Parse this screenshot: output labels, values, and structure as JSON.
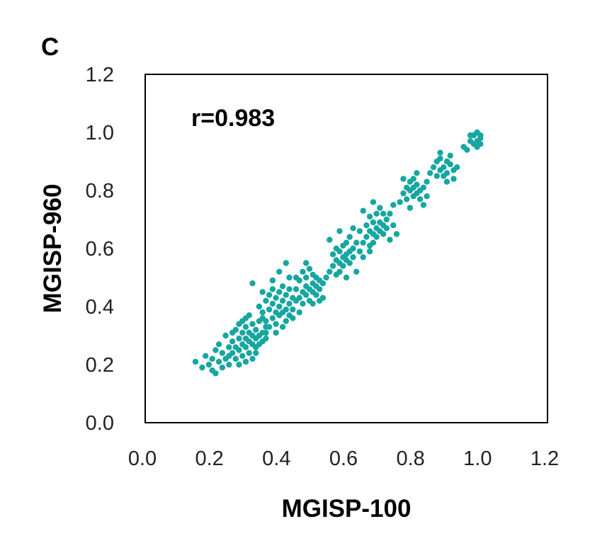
{
  "chart_data": {
    "type": "scatter",
    "panel_label": "C",
    "annotation": "r=0.983",
    "xlabel": "MGISP-100",
    "ylabel": "MGISP-960",
    "xlim": [
      0.0,
      1.2
    ],
    "ylim": [
      0.0,
      1.2
    ],
    "xticks": [
      "0.0",
      "0.2",
      "0.4",
      "0.6",
      "0.8",
      "1.0",
      "1.2"
    ],
    "yticks": [
      "0.0",
      "0.2",
      "0.4",
      "0.6",
      "0.8",
      "1.0",
      "1.2"
    ],
    "marker_color": "#17a6a0",
    "grid": false,
    "points": [
      [
        0.15,
        0.21
      ],
      [
        0.17,
        0.19
      ],
      [
        0.18,
        0.23
      ],
      [
        0.19,
        0.2
      ],
      [
        0.2,
        0.18
      ],
      [
        0.2,
        0.22
      ],
      [
        0.21,
        0.25
      ],
      [
        0.21,
        0.17
      ],
      [
        0.22,
        0.21
      ],
      [
        0.22,
        0.27
      ],
      [
        0.23,
        0.19
      ],
      [
        0.23,
        0.24
      ],
      [
        0.24,
        0.3
      ],
      [
        0.24,
        0.22
      ],
      [
        0.25,
        0.26
      ],
      [
        0.25,
        0.2
      ],
      [
        0.26,
        0.28
      ],
      [
        0.26,
        0.24
      ],
      [
        0.27,
        0.32
      ],
      [
        0.27,
        0.26
      ],
      [
        0.27,
        0.22
      ],
      [
        0.28,
        0.29
      ],
      [
        0.28,
        0.25
      ],
      [
        0.28,
        0.34
      ],
      [
        0.29,
        0.27
      ],
      [
        0.29,
        0.31
      ],
      [
        0.29,
        0.23
      ],
      [
        0.3,
        0.29
      ],
      [
        0.3,
        0.26
      ],
      [
        0.3,
        0.33
      ],
      [
        0.3,
        0.36
      ],
      [
        0.31,
        0.28
      ],
      [
        0.31,
        0.24
      ],
      [
        0.31,
        0.31
      ],
      [
        0.32,
        0.27
      ],
      [
        0.32,
        0.3
      ],
      [
        0.32,
        0.34
      ],
      [
        0.33,
        0.26
      ],
      [
        0.33,
        0.29
      ],
      [
        0.33,
        0.32
      ],
      [
        0.34,
        0.3
      ],
      [
        0.34,
        0.27
      ],
      [
        0.34,
        0.35
      ],
      [
        0.35,
        0.31
      ],
      [
        0.35,
        0.28
      ],
      [
        0.36,
        0.33
      ],
      [
        0.26,
        0.31
      ],
      [
        0.29,
        0.35
      ],
      [
        0.31,
        0.37
      ],
      [
        0.25,
        0.23
      ],
      [
        0.3,
        0.21
      ],
      [
        0.32,
        0.22
      ],
      [
        0.28,
        0.2
      ],
      [
        0.33,
        0.24
      ],
      [
        0.36,
        0.29
      ],
      [
        0.35,
        0.36
      ],
      [
        0.32,
        0.48
      ],
      [
        0.34,
        0.4
      ],
      [
        0.35,
        0.38
      ],
      [
        0.36,
        0.42
      ],
      [
        0.36,
        0.35
      ],
      [
        0.37,
        0.39
      ],
      [
        0.37,
        0.44
      ],
      [
        0.37,
        0.33
      ],
      [
        0.38,
        0.41
      ],
      [
        0.38,
        0.36
      ],
      [
        0.38,
        0.46
      ],
      [
        0.39,
        0.38
      ],
      [
        0.39,
        0.43
      ],
      [
        0.39,
        0.34
      ],
      [
        0.4,
        0.4
      ],
      [
        0.4,
        0.37
      ],
      [
        0.4,
        0.45
      ],
      [
        0.41,
        0.42
      ],
      [
        0.41,
        0.38
      ],
      [
        0.41,
        0.47
      ],
      [
        0.42,
        0.39
      ],
      [
        0.42,
        0.44
      ],
      [
        0.42,
        0.35
      ],
      [
        0.43,
        0.41
      ],
      [
        0.43,
        0.37
      ],
      [
        0.43,
        0.46
      ],
      [
        0.44,
        0.43
      ],
      [
        0.44,
        0.39
      ],
      [
        0.45,
        0.42
      ],
      [
        0.45,
        0.5
      ],
      [
        0.46,
        0.38
      ],
      [
        0.36,
        0.31
      ],
      [
        0.39,
        0.31
      ],
      [
        0.41,
        0.33
      ],
      [
        0.38,
        0.49
      ],
      [
        0.4,
        0.52
      ],
      [
        0.42,
        0.55
      ],
      [
        0.35,
        0.45
      ],
      [
        0.44,
        0.36
      ],
      [
        0.43,
        0.5
      ],
      [
        0.45,
        0.46
      ],
      [
        0.46,
        0.43
      ],
      [
        0.46,
        0.49
      ],
      [
        0.47,
        0.45
      ],
      [
        0.47,
        0.52
      ],
      [
        0.47,
        0.41
      ],
      [
        0.48,
        0.47
      ],
      [
        0.48,
        0.44
      ],
      [
        0.48,
        0.5
      ],
      [
        0.49,
        0.46
      ],
      [
        0.49,
        0.53
      ],
      [
        0.49,
        0.42
      ],
      [
        0.5,
        0.48
      ],
      [
        0.5,
        0.45
      ],
      [
        0.5,
        0.51
      ],
      [
        0.51,
        0.47
      ],
      [
        0.51,
        0.44
      ],
      [
        0.51,
        0.5
      ],
      [
        0.52,
        0.46
      ],
      [
        0.52,
        0.49
      ],
      [
        0.53,
        0.43
      ],
      [
        0.53,
        0.48
      ],
      [
        0.48,
        0.55
      ],
      [
        0.5,
        0.41
      ],
      [
        0.52,
        0.42
      ],
      [
        0.54,
        0.5
      ],
      [
        0.55,
        0.52
      ],
      [
        0.56,
        0.54
      ],
      [
        0.56,
        0.58
      ],
      [
        0.57,
        0.51
      ],
      [
        0.57,
        0.56
      ],
      [
        0.57,
        0.6
      ],
      [
        0.58,
        0.55
      ],
      [
        0.58,
        0.59
      ],
      [
        0.58,
        0.52
      ],
      [
        0.59,
        0.57
      ],
      [
        0.59,
        0.61
      ],
      [
        0.59,
        0.54
      ],
      [
        0.6,
        0.58
      ],
      [
        0.6,
        0.56
      ],
      [
        0.6,
        0.62
      ],
      [
        0.61,
        0.59
      ],
      [
        0.61,
        0.55
      ],
      [
        0.61,
        0.64
      ],
      [
        0.62,
        0.6
      ],
      [
        0.62,
        0.57
      ],
      [
        0.63,
        0.62
      ],
      [
        0.63,
        0.52
      ],
      [
        0.64,
        0.59
      ],
      [
        0.64,
        0.66
      ],
      [
        0.55,
        0.63
      ],
      [
        0.58,
        0.66
      ],
      [
        0.6,
        0.5
      ],
      [
        0.62,
        0.67
      ],
      [
        0.65,
        0.62
      ],
      [
        0.66,
        0.64
      ],
      [
        0.66,
        0.68
      ],
      [
        0.67,
        0.61
      ],
      [
        0.67,
        0.66
      ],
      [
        0.67,
        0.71
      ],
      [
        0.68,
        0.65
      ],
      [
        0.68,
        0.69
      ],
      [
        0.68,
        0.62
      ],
      [
        0.69,
        0.67
      ],
      [
        0.69,
        0.72
      ],
      [
        0.69,
        0.64
      ],
      [
        0.7,
        0.69
      ],
      [
        0.7,
        0.66
      ],
      [
        0.7,
        0.74
      ],
      [
        0.71,
        0.68
      ],
      [
        0.71,
        0.65
      ],
      [
        0.71,
        0.72
      ],
      [
        0.72,
        0.7
      ],
      [
        0.72,
        0.67
      ],
      [
        0.73,
        0.72
      ],
      [
        0.73,
        0.63
      ],
      [
        0.74,
        0.68
      ],
      [
        0.74,
        0.75
      ],
      [
        0.65,
        0.73
      ],
      [
        0.68,
        0.76
      ],
      [
        0.75,
        0.65
      ],
      [
        0.65,
        0.57
      ],
      [
        0.67,
        0.59
      ],
      [
        0.76,
        0.76
      ],
      [
        0.77,
        0.79
      ],
      [
        0.78,
        0.81
      ],
      [
        0.78,
        0.77
      ],
      [
        0.79,
        0.8
      ],
      [
        0.79,
        0.83
      ],
      [
        0.8,
        0.78
      ],
      [
        0.8,
        0.81
      ],
      [
        0.8,
        0.84
      ],
      [
        0.81,
        0.79
      ],
      [
        0.81,
        0.82
      ],
      [
        0.82,
        0.8
      ],
      [
        0.82,
        0.77
      ],
      [
        0.83,
        0.81
      ],
      [
        0.83,
        0.75
      ],
      [
        0.84,
        0.78
      ],
      [
        0.77,
        0.84
      ],
      [
        0.79,
        0.74
      ],
      [
        0.81,
        0.86
      ],
      [
        0.84,
        0.83
      ],
      [
        0.85,
        0.86
      ],
      [
        0.86,
        0.88
      ],
      [
        0.87,
        0.85
      ],
      [
        0.87,
        0.9
      ],
      [
        0.88,
        0.87
      ],
      [
        0.88,
        0.91
      ],
      [
        0.89,
        0.88
      ],
      [
        0.89,
        0.85
      ],
      [
        0.9,
        0.9
      ],
      [
        0.9,
        0.86
      ],
      [
        0.91,
        0.89
      ],
      [
        0.91,
        0.92
      ],
      [
        0.92,
        0.87
      ],
      [
        0.92,
        0.84
      ],
      [
        0.93,
        0.88
      ],
      [
        0.88,
        0.93
      ],
      [
        0.9,
        0.83
      ],
      [
        0.95,
        0.95
      ],
      [
        0.96,
        0.94
      ],
      [
        0.97,
        0.97
      ],
      [
        0.98,
        0.96
      ],
      [
        0.98,
        0.99
      ],
      [
        0.99,
        0.97
      ],
      [
        0.99,
        1.0
      ],
      [
        1.0,
        0.98
      ],
      [
        1.0,
        0.96
      ],
      [
        1.0,
        0.99
      ],
      [
        0.99,
        0.95
      ],
      [
        0.97,
        0.99
      ]
    ]
  }
}
